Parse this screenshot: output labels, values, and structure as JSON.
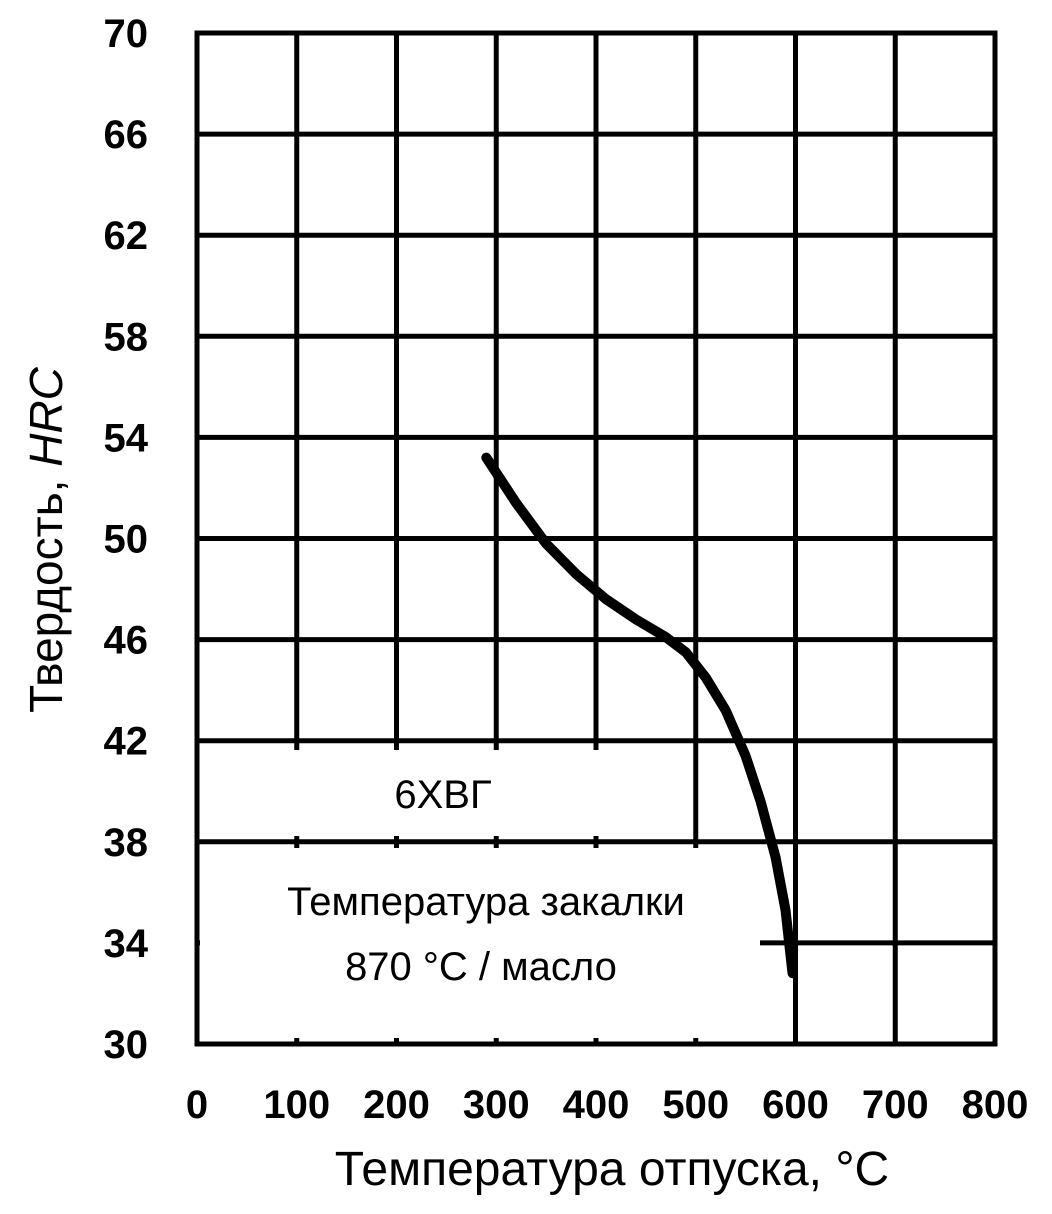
{
  "chart_data": {
    "type": "line",
    "xlabel": "Температура отпуска, °С",
    "ylabel_prefix": "Твердость, ",
    "ylabel_unit": "HRC",
    "xlim": [
      0,
      800
    ],
    "ylim": [
      30,
      70
    ],
    "xticks": [
      0,
      100,
      200,
      300,
      400,
      500,
      600,
      700,
      800
    ],
    "yticks": [
      30,
      34,
      38,
      42,
      46,
      50,
      54,
      58,
      62,
      66,
      70
    ],
    "grid": true,
    "series": [
      {
        "name": "6ХВГ",
        "color": "#000000",
        "x": [
          290,
          320,
          350,
          380,
          410,
          440,
          470,
          490,
          510,
          530,
          550,
          565,
          580,
          590,
          597
        ],
        "y": [
          53.2,
          51.4,
          49.8,
          48.6,
          47.6,
          46.8,
          46.1,
          45.5,
          44.5,
          43.2,
          41.4,
          39.6,
          37.4,
          35.3,
          32.8
        ]
      }
    ],
    "annotations": {
      "grade": "6ХВГ",
      "quench_line1": "Температура  закалки",
      "quench_line2": "870 °С / масло"
    }
  }
}
